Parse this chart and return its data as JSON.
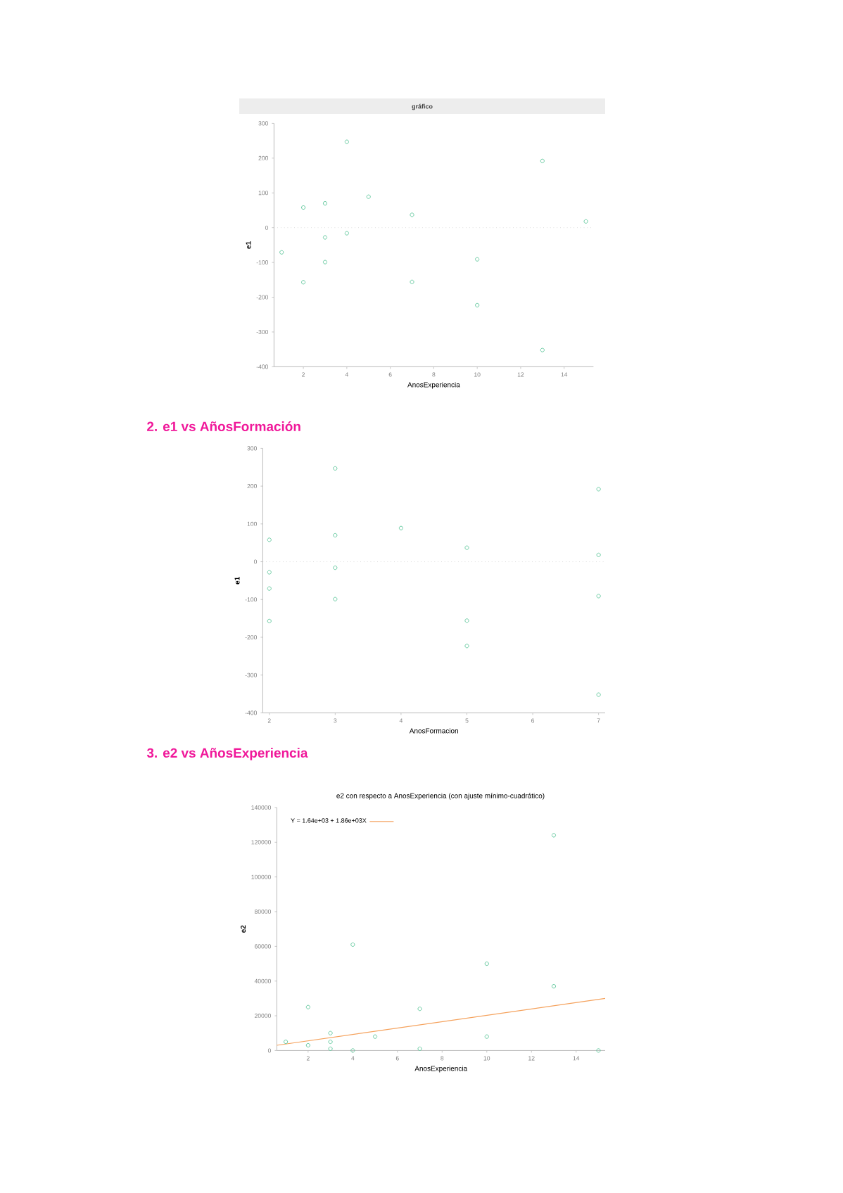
{
  "chart_data": [
    {
      "type": "scatter",
      "title": "gráfico",
      "xlabel": "AnosExperiencia",
      "ylabel": "e1",
      "x": [
        1,
        2,
        2,
        3,
        3,
        3,
        4,
        4,
        5,
        7,
        7,
        10,
        10,
        13,
        13,
        15
      ],
      "series": [
        {
          "color": "#66c9a0",
          "values": [
            -71,
            58,
            -157,
            70,
            -28,
            -99,
            247,
            -16,
            89,
            37,
            -156,
            -91,
            -223,
            192,
            -352,
            18
          ]
        }
      ],
      "xlim": [
        0.65,
        15.35
      ],
      "ylim": [
        -400,
        300
      ],
      "xticks": [
        2,
        4,
        6,
        8,
        10,
        12,
        14
      ],
      "yticks": [
        -400,
        -300,
        -200,
        -100,
        0,
        100,
        200,
        300
      ],
      "ref_lines": [
        {
          "axis": "y",
          "value": 0,
          "color": "#cccccc",
          "line_style": "dotted"
        }
      ],
      "marker": "circle"
    },
    {
      "type": "scatter",
      "title": "2. e1 vs AñosFormación",
      "xlabel": "AnosFormacion",
      "ylabel": "e1",
      "x": [
        2,
        2,
        2,
        2,
        3,
        3,
        3,
        3,
        4,
        5,
        5,
        5,
        7,
        7,
        7,
        7
      ],
      "series": [
        {
          "color": "#66c9a0",
          "values": [
            58,
            -28,
            -71,
            -157,
            247,
            70,
            -16,
            -99,
            89,
            37,
            -156,
            -223,
            192,
            18,
            -91,
            -352
          ]
        }
      ],
      "xlim": [
        1.9,
        7.1
      ],
      "ylim": [
        -400,
        300
      ],
      "xticks": [
        2,
        3,
        4,
        5,
        6,
        7
      ],
      "yticks": [
        -400,
        -300,
        -200,
        -100,
        0,
        100,
        200,
        300
      ],
      "ref_lines": [
        {
          "axis": "y",
          "value": 0,
          "color": "#cccccc",
          "line_style": "dotted"
        }
      ],
      "marker": "circle"
    },
    {
      "type": "scatter",
      "title": "3. e2 vs AñosExperiencia",
      "subtitle": "e2 con respecto a AnosExperiencia (con ajuste mínimo-cuadrático)",
      "xlabel": "AnosExperiencia",
      "ylabel": "e2",
      "x": [
        1,
        2,
        2,
        3,
        3,
        3,
        4,
        4,
        5,
        7,
        7,
        10,
        10,
        13,
        13,
        15
      ],
      "series": [
        {
          "color": "#66c9a0",
          "marker": "circle",
          "values": [
            5000,
            3000,
            25000,
            5000,
            1000,
            10000,
            61000,
            0,
            8000,
            1000,
            24000,
            8000,
            50000,
            37000,
            124000,
            0
          ]
        },
        {
          "type": "line",
          "marker": "none",
          "name": "Y = 1.64e+03 + 1.86e+03X",
          "color": "#f5a25d",
          "x": [
            0.6,
            15.3
          ],
          "values": [
            3000,
            30000
          ]
        }
      ],
      "xlim": [
        0.6,
        15.3
      ],
      "ylim": [
        0,
        140000
      ],
      "xticks": [
        2,
        4,
        6,
        8,
        10,
        12,
        14
      ],
      "yticks": [
        0,
        20000,
        40000,
        60000,
        80000,
        100000,
        120000,
        140000
      ],
      "legend": "top left"
    }
  ]
}
